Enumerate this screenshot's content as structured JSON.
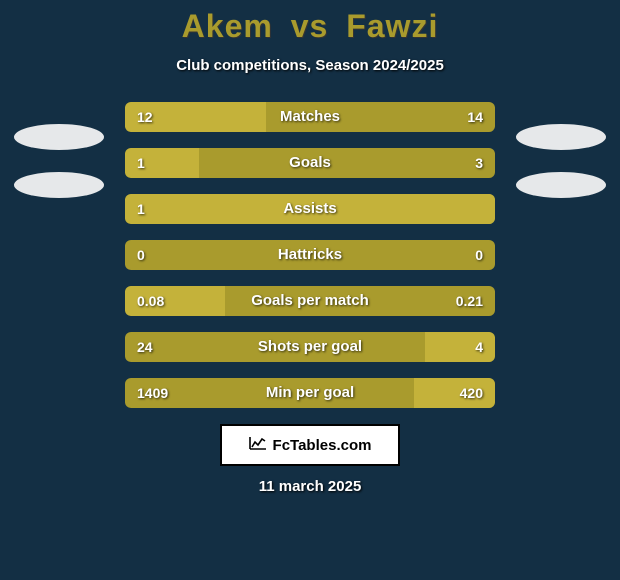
{
  "colors": {
    "background": "#132f44",
    "player1": "#a99b2d",
    "player2": "#a99b2d",
    "bar_bg": "#a99b2d",
    "fill_color": "#c4b23a",
    "badge": "#e6e8ea",
    "text_white": "#ffffff"
  },
  "title": {
    "player1": "Akem",
    "vs": "vs",
    "player2": "Fawzi",
    "fontsize": 32
  },
  "subtitle": "Club competitions, Season 2024/2025",
  "bars": [
    {
      "label": "Matches",
      "left_val": "12",
      "right_val": "14",
      "left_pct": 38,
      "right_pct": 0
    },
    {
      "label": "Goals",
      "left_val": "1",
      "right_val": "3",
      "left_pct": 20,
      "right_pct": 0
    },
    {
      "label": "Assists",
      "left_val": "1",
      "right_val": "",
      "left_pct": 100,
      "right_pct": 0
    },
    {
      "label": "Hattricks",
      "left_val": "0",
      "right_val": "0",
      "left_pct": 0,
      "right_pct": 0
    },
    {
      "label": "Goals per match",
      "left_val": "0.08",
      "right_val": "0.21",
      "left_pct": 27,
      "right_pct": 0
    },
    {
      "label": "Shots per goal",
      "left_val": "24",
      "right_val": "4",
      "left_pct": 0,
      "right_pct": 19
    },
    {
      "label": "Min per goal",
      "left_val": "1409",
      "right_val": "420",
      "left_pct": 0,
      "right_pct": 22
    }
  ],
  "footer": {
    "brand": "FcTables.com",
    "date": "11 march 2025"
  }
}
